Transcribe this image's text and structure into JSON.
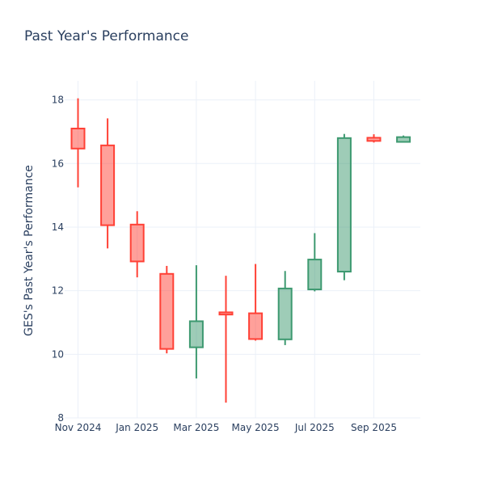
{
  "chart_data": {
    "type": "candlestick",
    "title": "Past Year's Performance",
    "ylabel": "GES's Past Year's Performance",
    "xlabel": "",
    "ylim": [
      8,
      18.6
    ],
    "yticks": [
      8,
      10,
      12,
      14,
      16,
      18
    ],
    "xticks": [
      {
        "label": "Nov 2024",
        "month_index": 0
      },
      {
        "label": "Jan 2025",
        "month_index": 2
      },
      {
        "label": "Mar 2025",
        "month_index": 4
      },
      {
        "label": "May 2025",
        "month_index": 6
      },
      {
        "label": "Jul 2025",
        "month_index": 8
      },
      {
        "label": "Sep 2025",
        "month_index": 10
      }
    ],
    "increasing_color": "#3d9970",
    "decreasing_color": "#ff4136",
    "candles": [
      {
        "period": "Nov 2024",
        "open": 17.1,
        "high": 18.05,
        "low": 15.25,
        "close": 16.47
      },
      {
        "period": "Dec 2024",
        "open": 16.57,
        "high": 17.42,
        "low": 13.33,
        "close": 14.06
      },
      {
        "period": "Jan 2025",
        "open": 14.08,
        "high": 14.5,
        "low": 12.42,
        "close": 12.92
      },
      {
        "period": "Feb 2025",
        "open": 12.53,
        "high": 12.78,
        "low": 10.03,
        "close": 10.17
      },
      {
        "period": "Mar 2025",
        "open": 10.22,
        "high": 12.8,
        "low": 9.24,
        "close": 11.04
      },
      {
        "period": "Apr 2025",
        "open": 11.32,
        "high": 12.47,
        "low": 8.48,
        "close": 11.25
      },
      {
        "period": "May 2025",
        "open": 11.29,
        "high": 12.84,
        "low": 10.43,
        "close": 10.48
      },
      {
        "period": "Jun 2025",
        "open": 10.47,
        "high": 12.62,
        "low": 10.29,
        "close": 12.07
      },
      {
        "period": "Jul 2025",
        "open": 12.04,
        "high": 13.81,
        "low": 11.98,
        "close": 12.98
      },
      {
        "period": "Aug 2025",
        "open": 12.6,
        "high": 16.93,
        "low": 12.33,
        "close": 16.8
      },
      {
        "period": "Sep 2025",
        "open": 16.81,
        "high": 16.92,
        "low": 16.66,
        "close": 16.71
      },
      {
        "period": "Oct 2025",
        "open": 16.68,
        "high": 16.88,
        "low": 16.66,
        "close": 16.83
      }
    ]
  }
}
